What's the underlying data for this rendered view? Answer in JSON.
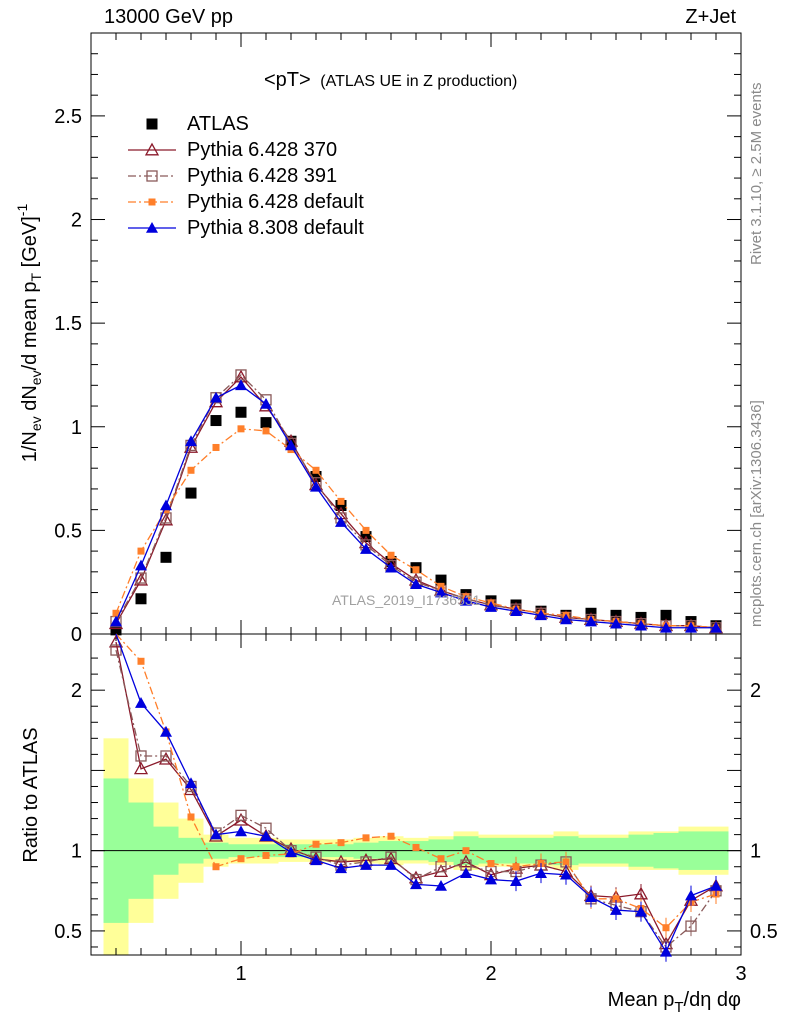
{
  "header": {
    "left": "13000 GeV pp",
    "right": "Z+Jet"
  },
  "side_labels": {
    "rivet": "Rivet 3.1.10, ≥ 2.5M events",
    "mcplots": "mcplots.cern.ch [arXiv:1306.3436]"
  },
  "watermark": "ATLAS_2019_I1736531",
  "chart_data": [
    {
      "type": "scatter",
      "panel": "main",
      "title_main": "<pT>",
      "title_sub": "(ATLAS UE in Z production)",
      "xlabel_main": "Mean p",
      "xlabel_sub": "T",
      "xlabel_tail": "/dη dφ",
      "ylabel": "1/N_ev dN_ev/d mean p_T [GeV]^-1",
      "xlim": [
        0.4,
        3.0
      ],
      "ylim": [
        0,
        2.9
      ],
      "yticks": [
        0,
        0.5,
        1,
        1.5,
        2,
        2.5
      ],
      "ytick_labels": [
        "0",
        "0.5",
        "1",
        "1.5",
        "2",
        "2.5"
      ],
      "legend_position": "top-left",
      "x": [
        0.5,
        0.6,
        0.7,
        0.8,
        0.9,
        1.0,
        1.1,
        1.2,
        1.3,
        1.4,
        1.5,
        1.6,
        1.7,
        1.8,
        1.9,
        2.0,
        2.1,
        2.2,
        2.3,
        2.4,
        2.5,
        2.6,
        2.7,
        2.8,
        2.9
      ],
      "series": [
        {
          "name": "ATLAS",
          "color": "#000000",
          "marker": "square-filled",
          "line": "none",
          "values": [
            0.02,
            0.17,
            0.37,
            0.68,
            1.03,
            1.07,
            1.02,
            0.93,
            0.76,
            0.62,
            0.47,
            0.35,
            0.32,
            0.26,
            0.19,
            0.16,
            0.14,
            0.11,
            0.09,
            0.1,
            0.09,
            0.08,
            0.09,
            0.06,
            0.04
          ]
        },
        {
          "name": "Pythia 6.428 370",
          "color": "#8b1a2b",
          "marker": "triangle-open",
          "line": "solid",
          "values": [
            0.05,
            0.26,
            0.55,
            0.9,
            1.12,
            1.24,
            1.1,
            0.93,
            0.72,
            0.58,
            0.44,
            0.34,
            0.26,
            0.21,
            0.17,
            0.14,
            0.12,
            0.1,
            0.08,
            0.07,
            0.06,
            0.05,
            0.04,
            0.04,
            0.03
          ]
        },
        {
          "name": "Pythia 6.428 391",
          "color": "#8a5a5a",
          "marker": "square-open",
          "line": "dashdot",
          "values": [
            0.06,
            0.27,
            0.56,
            0.91,
            1.14,
            1.25,
            1.13,
            0.92,
            0.73,
            0.56,
            0.43,
            0.33,
            0.25,
            0.21,
            0.17,
            0.14,
            0.12,
            0.1,
            0.08,
            0.07,
            0.06,
            0.05,
            0.04,
            0.04,
            0.03
          ]
        },
        {
          "name": "Pythia 6.428 default",
          "color": "#ff7f2a",
          "marker": "square-filled-small",
          "line": "dashdot",
          "values": [
            0.1,
            0.4,
            0.6,
            0.79,
            0.9,
            0.99,
            0.98,
            0.89,
            0.79,
            0.64,
            0.5,
            0.38,
            0.31,
            0.23,
            0.18,
            0.15,
            0.12,
            0.1,
            0.09,
            0.07,
            0.06,
            0.05,
            0.04,
            0.04,
            0.03
          ]
        },
        {
          "name": "Pythia 8.308 default",
          "color": "#0000dd",
          "marker": "triangle-filled",
          "line": "solid",
          "values": [
            0.06,
            0.33,
            0.62,
            0.93,
            1.14,
            1.2,
            1.11,
            0.91,
            0.71,
            0.54,
            0.41,
            0.32,
            0.24,
            0.2,
            0.16,
            0.13,
            0.11,
            0.09,
            0.07,
            0.06,
            0.05,
            0.04,
            0.03,
            0.03,
            0.03
          ]
        }
      ]
    },
    {
      "type": "line",
      "panel": "ratio",
      "ylabel": "Ratio to ATLAS",
      "xlim": [
        0.4,
        3.0
      ],
      "ylim": [
        0.35,
        2.35
      ],
      "xticks": [
        1,
        2,
        3
      ],
      "xtick_labels": [
        "1",
        "2",
        "3"
      ],
      "yticks": [
        0.5,
        1,
        2
      ],
      "ytick_labels": [
        "0.5",
        "1",
        "2"
      ],
      "reference_line": 1,
      "band_edges": [
        0.45,
        0.55,
        0.65,
        0.75,
        0.85,
        0.95,
        1.05,
        1.15,
        1.25,
        1.35,
        1.45,
        1.55,
        1.65,
        1.75,
        1.85,
        1.95,
        2.05,
        2.15,
        2.25,
        2.35,
        2.45,
        2.55,
        2.65,
        2.75,
        2.85,
        2.95
      ],
      "band_stat": [
        0.45,
        0.3,
        0.15,
        0.08,
        0.05,
        0.04,
        0.04,
        0.04,
        0.04,
        0.04,
        0.05,
        0.06,
        0.06,
        0.07,
        0.09,
        0.08,
        0.08,
        0.08,
        0.09,
        0.08,
        0.08,
        0.1,
        0.11,
        0.12,
        0.12
      ],
      "band_total": [
        0.7,
        0.45,
        0.3,
        0.2,
        0.1,
        0.08,
        0.08,
        0.07,
        0.07,
        0.07,
        0.08,
        0.09,
        0.08,
        0.09,
        0.12,
        0.1,
        0.1,
        0.1,
        0.12,
        0.1,
        0.1,
        0.12,
        0.12,
        0.15,
        0.15
      ],
      "x": [
        0.5,
        0.6,
        0.7,
        0.8,
        0.9,
        1.0,
        1.1,
        1.2,
        1.3,
        1.4,
        1.5,
        1.6,
        1.7,
        1.8,
        1.9,
        2.0,
        2.1,
        2.2,
        2.3,
        2.4,
        2.5,
        2.6,
        2.7,
        2.8,
        2.9
      ],
      "series": [
        {
          "name": "Pythia 6.428 370",
          "values": [
            2.3,
            1.51,
            1.57,
            1.38,
            1.09,
            1.19,
            1.09,
            1.01,
            0.95,
            0.93,
            0.94,
            0.95,
            0.83,
            0.87,
            0.93,
            0.85,
            0.89,
            0.91,
            0.87,
            0.72,
            0.71,
            0.73,
            0.42,
            0.69,
            0.78
          ]
        },
        {
          "name": "Pythia 6.428 391",
          "values": [
            2.25,
            1.59,
            1.59,
            1.4,
            1.11,
            1.22,
            1.14,
            1.0,
            0.96,
            0.91,
            0.93,
            0.96,
            0.82,
            0.9,
            0.91,
            0.87,
            0.87,
            0.91,
            0.93,
            0.7,
            0.66,
            0.62,
            0.4,
            0.53,
            0.75
          ]
        },
        {
          "name": "Pythia 6.428 default",
          "values": [
            2.5,
            2.18,
            1.74,
            1.21,
            0.9,
            0.95,
            0.97,
            0.98,
            1.04,
            1.05,
            1.08,
            1.09,
            1.02,
            0.95,
            1.0,
            0.92,
            0.9,
            0.92,
            0.93,
            0.7,
            0.7,
            0.64,
            0.52,
            0.68,
            0.73
          ]
        },
        {
          "name": "Pythia 8.308 default",
          "values": [
            2.5,
            1.92,
            1.74,
            1.42,
            1.1,
            1.12,
            1.09,
            0.99,
            0.94,
            0.89,
            0.91,
            0.91,
            0.79,
            0.78,
            0.86,
            0.82,
            0.81,
            0.86,
            0.85,
            0.71,
            0.63,
            0.62,
            0.37,
            0.72,
            0.78
          ]
        }
      ]
    }
  ]
}
